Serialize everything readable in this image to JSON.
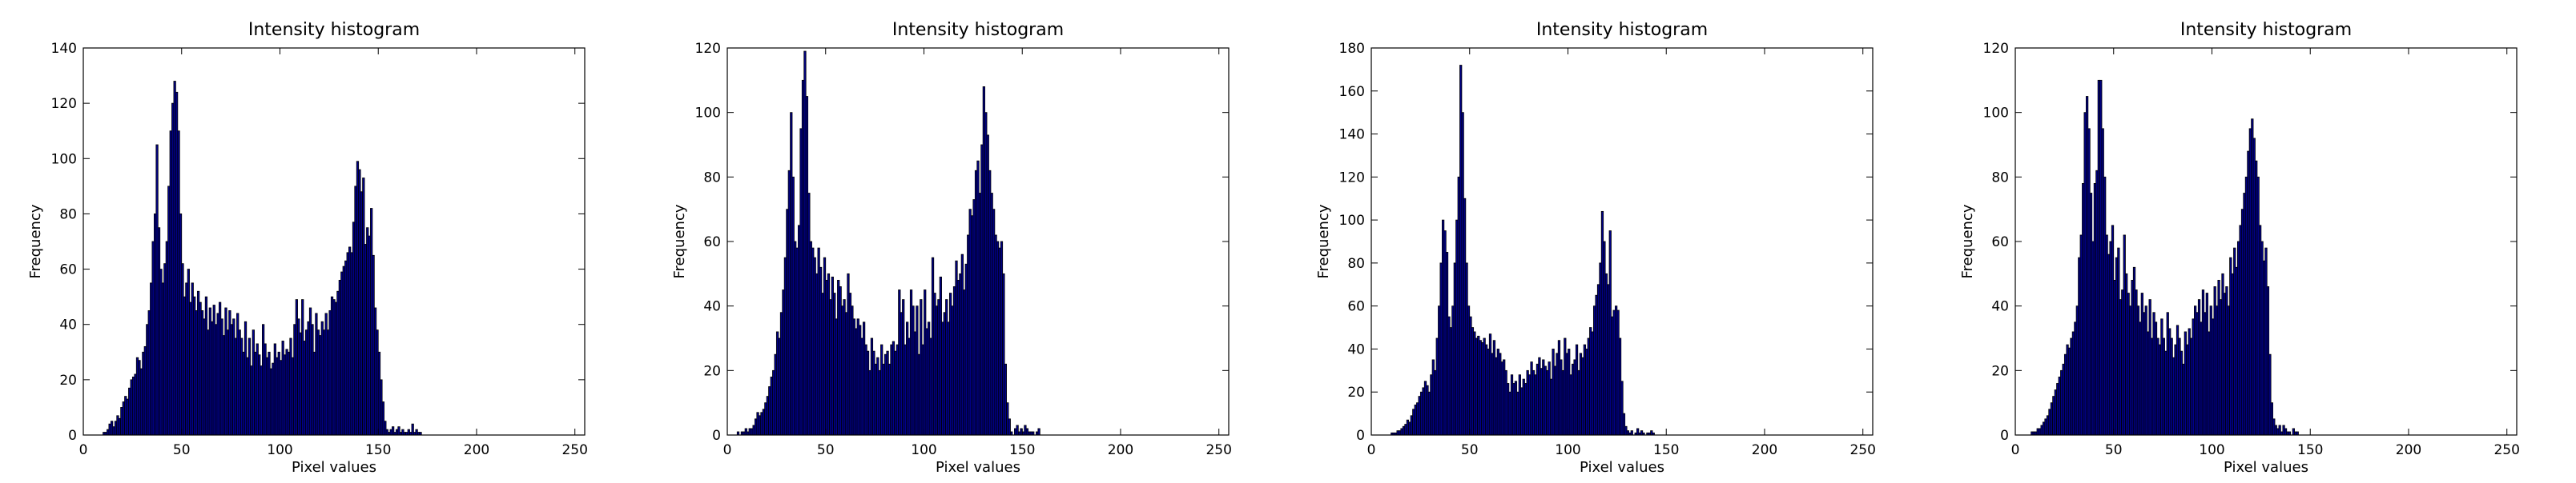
{
  "figure": {
    "bar_color": "#00008b",
    "edge_color": "#000000",
    "frame_color": "#000000"
  },
  "chart_data": [
    {
      "type": "bar",
      "title": "Intensity histogram",
      "xlabel": "Pixel values",
      "ylabel": "Frequency",
      "xlim": [
        0,
        255
      ],
      "ylim": [
        0,
        140
      ],
      "xticks": [
        0,
        50,
        100,
        150,
        200,
        250
      ],
      "yticks": [
        0,
        20,
        40,
        60,
        80,
        100,
        120,
        140
      ],
      "bin_width": 1,
      "bin_start": 10,
      "values": [
        1,
        1,
        2,
        4,
        5,
        3,
        5,
        7,
        6,
        10,
        12,
        14,
        13,
        17,
        20,
        21,
        22,
        28,
        27,
        24,
        30,
        32,
        40,
        45,
        55,
        70,
        80,
        105,
        75,
        60,
        55,
        62,
        70,
        90,
        110,
        120,
        128,
        124,
        110,
        80,
        62,
        50,
        55,
        60,
        48,
        55,
        50,
        45,
        52,
        48,
        45,
        42,
        50,
        38,
        46,
        41,
        47,
        40,
        44,
        48,
        42,
        36,
        46,
        38,
        45,
        40,
        42,
        35,
        44,
        38,
        35,
        30,
        41,
        28,
        35,
        25,
        38,
        30,
        33,
        29,
        25,
        40,
        33,
        28,
        30,
        24,
        26,
        33,
        28,
        30,
        27,
        34,
        29,
        31,
        30,
        35,
        28,
        40,
        49,
        42,
        37,
        49,
        34,
        38,
        41,
        46,
        40,
        30,
        44,
        38,
        36,
        41,
        38,
        44,
        38,
        45,
        50,
        49,
        48,
        52,
        56,
        59,
        61,
        63,
        66,
        68,
        66,
        77,
        90,
        99,
        96,
        88,
        93,
        69,
        75,
        72,
        82,
        65,
        46,
        38,
        30,
        20,
        12,
        5,
        2,
        1,
        2,
        3,
        1,
        2,
        3,
        1,
        2,
        1,
        1,
        2,
        1,
        4,
        1,
        2,
        1,
        1
      ]
    },
    {
      "type": "bar",
      "title": "Intensity histogram",
      "xlabel": "Pixel values",
      "ylabel": "Frequency",
      "xlim": [
        0,
        255
      ],
      "ylim": [
        0,
        120
      ],
      "xticks": [
        0,
        50,
        100,
        150,
        200,
        250
      ],
      "yticks": [
        0,
        20,
        40,
        60,
        80,
        100,
        120
      ],
      "bin_width": 1,
      "bin_start": 5,
      "values": [
        1,
        0,
        1,
        1,
        2,
        1,
        2,
        2,
        3,
        5,
        7,
        6,
        7,
        8,
        10,
        12,
        15,
        18,
        20,
        25,
        32,
        30,
        38,
        45,
        55,
        70,
        82,
        100,
        80,
        60,
        58,
        65,
        95,
        110,
        119,
        105,
        75,
        60,
        58,
        55,
        50,
        58,
        52,
        44,
        55,
        48,
        50,
        42,
        49,
        44,
        36,
        48,
        46,
        40,
        42,
        38,
        50,
        44,
        40,
        36,
        33,
        36,
        34,
        30,
        35,
        28,
        26,
        20,
        30,
        26,
        22,
        24,
        20,
        28,
        22,
        25,
        26,
        22,
        28,
        29,
        26,
        28,
        45,
        38,
        42,
        28,
        35,
        30,
        45,
        40,
        32,
        40,
        25,
        42,
        28,
        45,
        33,
        35,
        30,
        55,
        44,
        40,
        42,
        49,
        35,
        38,
        42,
        35,
        44,
        40,
        46,
        54,
        48,
        50,
        56,
        45,
        53,
        62,
        70,
        68,
        73,
        82,
        85,
        75,
        90,
        108,
        100,
        93,
        82,
        75,
        70,
        62,
        60,
        58,
        60,
        50,
        22,
        10,
        5,
        1,
        0,
        2,
        3,
        1,
        2,
        1,
        3,
        2,
        1,
        1,
        1,
        0,
        1,
        2
      ]
    },
    {
      "type": "bar",
      "title": "Intensity histogram",
      "xlabel": "Pixel values",
      "ylabel": "Frequency",
      "xlim": [
        0,
        255
      ],
      "ylim": [
        0,
        180
      ],
      "xticks": [
        0,
        50,
        100,
        150,
        200,
        250
      ],
      "yticks": [
        0,
        20,
        40,
        60,
        80,
        100,
        120,
        140,
        160,
        180
      ],
      "bin_width": 1,
      "bin_start": 10,
      "values": [
        1,
        1,
        1,
        2,
        2,
        3,
        4,
        5,
        7,
        6,
        9,
        12,
        14,
        15,
        18,
        20,
        22,
        25,
        23,
        20,
        28,
        35,
        30,
        45,
        60,
        80,
        100,
        95,
        85,
        55,
        50,
        60,
        80,
        100,
        120,
        172,
        150,
        110,
        80,
        60,
        55,
        50,
        48,
        45,
        46,
        44,
        43,
        45,
        42,
        40,
        47,
        38,
        44,
        36,
        40,
        38,
        34,
        35,
        30,
        24,
        20,
        28,
        24,
        25,
        20,
        28,
        22,
        26,
        24,
        30,
        28,
        34,
        30,
        28,
        33,
        36,
        31,
        35,
        32,
        30,
        34,
        26,
        40,
        32,
        38,
        44,
        35,
        30,
        45,
        38,
        40,
        28,
        33,
        35,
        42,
        30,
        38,
        36,
        42,
        40,
        45,
        50,
        48,
        60,
        65,
        70,
        80,
        104,
        90,
        75,
        70,
        95,
        55,
        58,
        60,
        58,
        45,
        25,
        10,
        4,
        2,
        1,
        2,
        0,
        1,
        3,
        1,
        2,
        1,
        0,
        1,
        1,
        2,
        1
      ]
    },
    {
      "type": "bar",
      "title": "Intensity histogram",
      "xlabel": "Pixel values",
      "ylabel": "Frequency",
      "xlim": [
        0,
        255
      ],
      "ylim": [
        0,
        120
      ],
      "xticks": [
        0,
        50,
        100,
        150,
        200,
        250
      ],
      "yticks": [
        0,
        20,
        40,
        60,
        80,
        100,
        120
      ],
      "bin_width": 1,
      "bin_start": 8,
      "values": [
        1,
        1,
        1,
        2,
        2,
        3,
        4,
        5,
        6,
        8,
        10,
        12,
        14,
        16,
        18,
        20,
        22,
        25,
        28,
        27,
        30,
        32,
        35,
        40,
        55,
        62,
        78,
        100,
        105,
        95,
        75,
        60,
        78,
        82,
        110,
        110,
        95,
        80,
        62,
        56,
        60,
        65,
        48,
        55,
        58,
        42,
        45,
        62,
        50,
        44,
        40,
        48,
        52,
        45,
        40,
        35,
        44,
        38,
        40,
        32,
        42,
        30,
        38,
        35,
        30,
        28,
        36,
        30,
        26,
        38,
        33,
        30,
        24,
        28,
        34,
        30,
        26,
        22,
        32,
        28,
        33,
        30,
        36,
        40,
        38,
        42,
        35,
        45,
        38,
        44,
        32,
        40,
        36,
        46,
        40,
        48,
        42,
        50,
        44,
        46,
        40,
        55,
        50,
        58,
        52,
        60,
        65,
        70,
        75,
        80,
        88,
        95,
        98,
        92,
        85,
        80,
        65,
        60,
        54,
        58,
        46,
        25,
        10,
        5,
        3,
        2,
        3,
        1,
        3,
        2,
        1,
        1,
        0,
        2,
        1,
        1
      ]
    }
  ]
}
